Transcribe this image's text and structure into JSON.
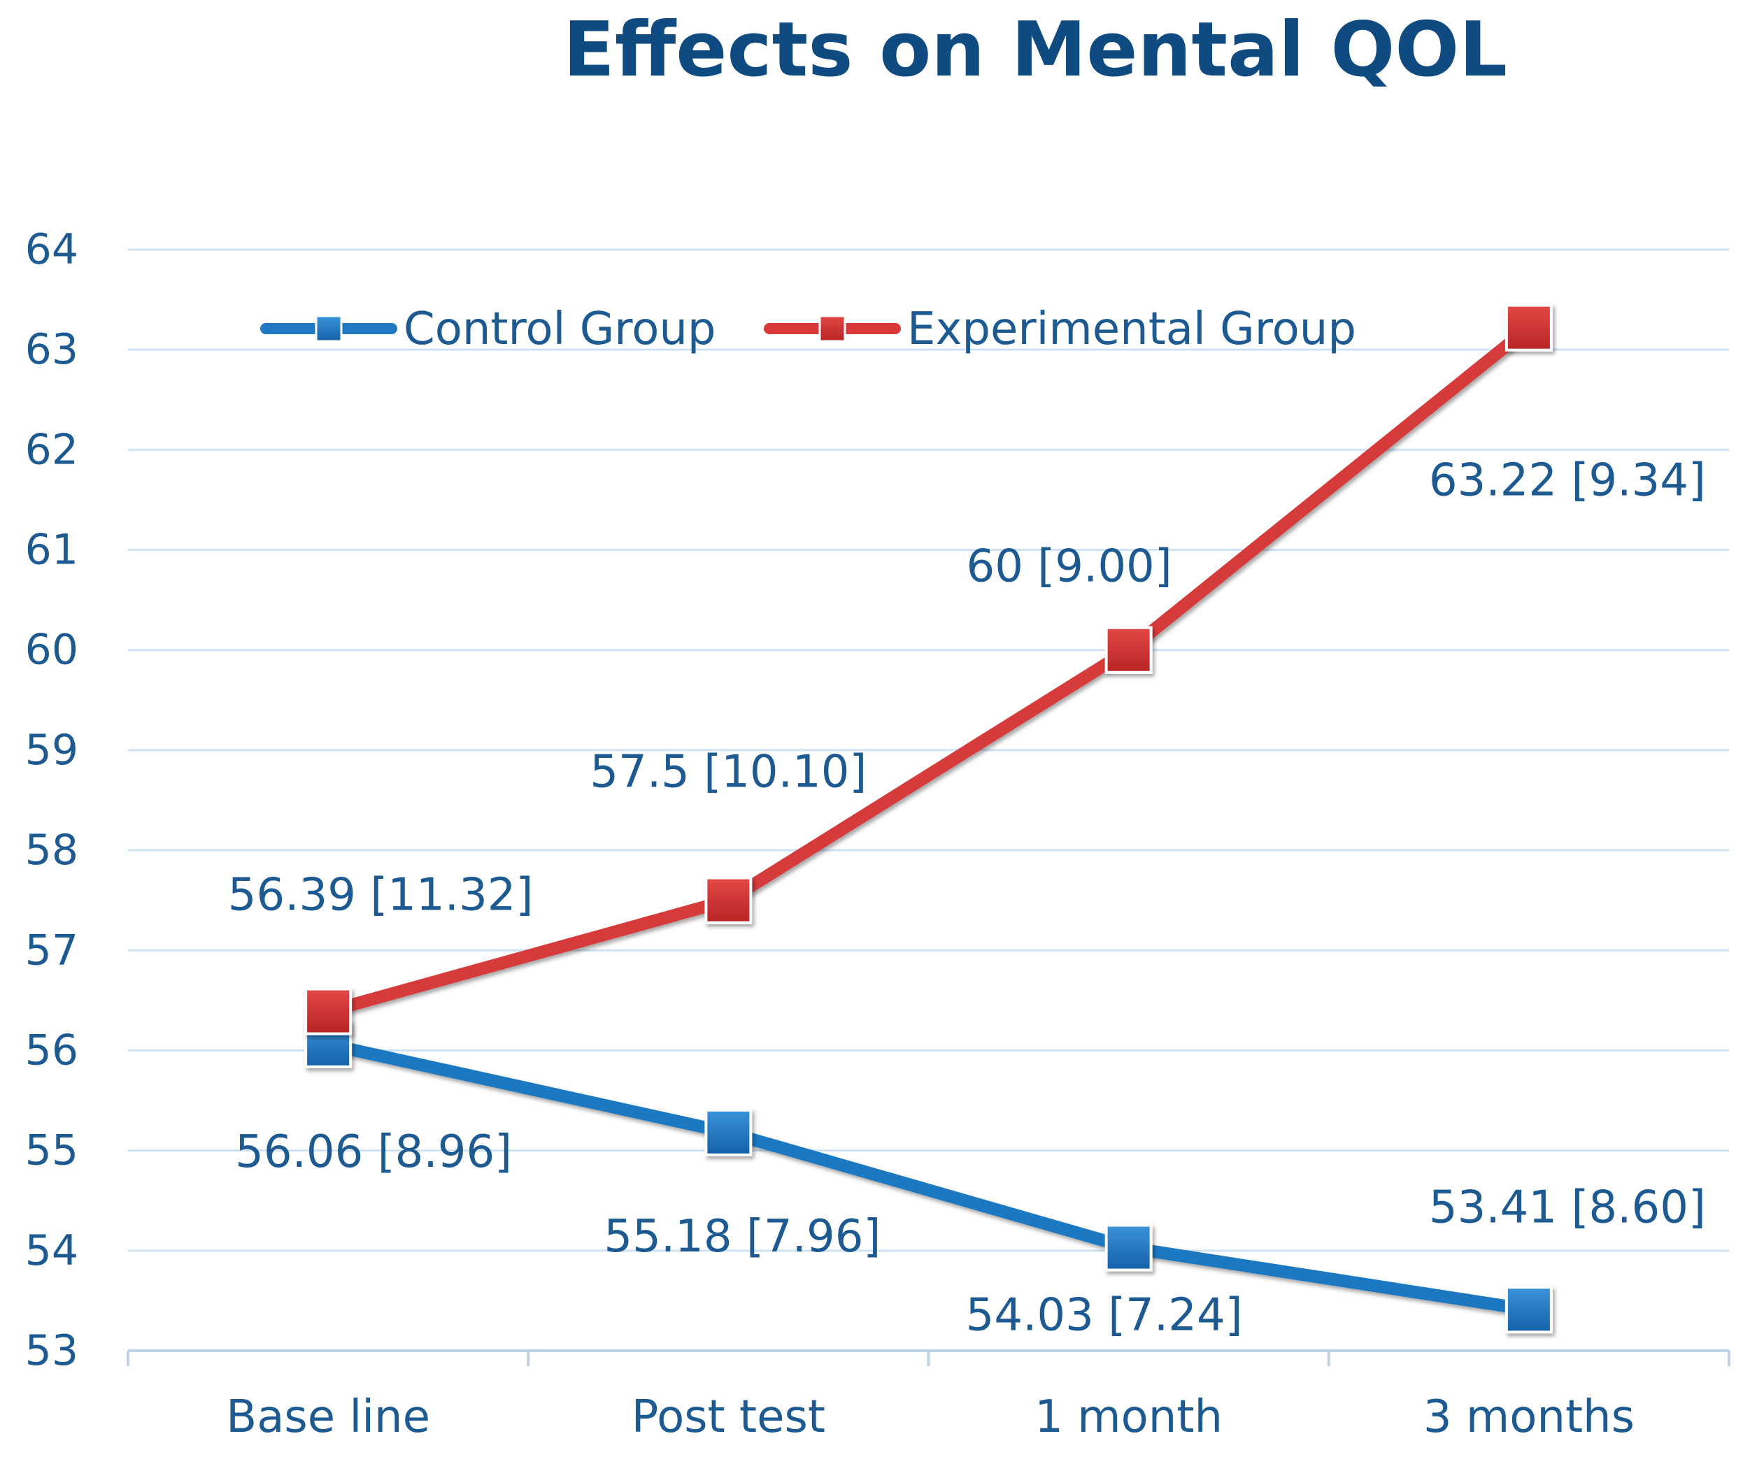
{
  "chart_data": {
    "type": "line",
    "title": "Effects on Mental QOL",
    "xlabel": "",
    "ylabel": "",
    "categories": [
      "Base line",
      "Post test",
      "1 month",
      "3 months"
    ],
    "ylim": [
      53,
      64
    ],
    "yticks": [
      53,
      54,
      55,
      56,
      57,
      58,
      59,
      60,
      61,
      62,
      63,
      64
    ],
    "grid": true,
    "legend_position": "top",
    "series": [
      {
        "name": "Control Group",
        "color": "#1f78c1",
        "values": [
          56.06,
          55.18,
          54.03,
          53.41
        ],
        "labels": [
          "56.06 [8.96]",
          "55.18 [7.96]",
          "54.03 [7.24]",
          "53.41 [8.60]"
        ]
      },
      {
        "name": "Experimental Group",
        "color": "#d63a3a",
        "values": [
          56.39,
          57.5,
          60,
          63.22
        ],
        "labels": [
          "56.39 [11.32]",
          "57.5 [10.10]",
          "60 [9.00]",
          "63.22 [9.34]"
        ]
      }
    ]
  }
}
